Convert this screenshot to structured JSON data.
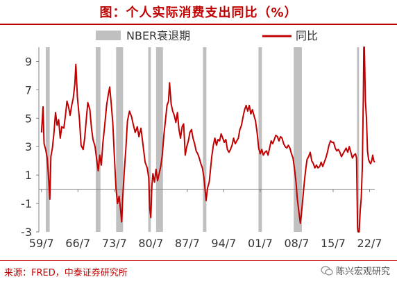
{
  "title": "图：个人实际消费支出同比（%）",
  "source": "来源：FRED，中泰证券研究所",
  "watermark": "陈兴宏观研究",
  "colors": {
    "title": "#c00000",
    "series": "#c00000",
    "recession": "#c0c0c0",
    "axis": "#808080"
  },
  "chart_data": {
    "type": "line",
    "title": "图：个人实际消费支出同比（%）",
    "xlabel": "",
    "ylabel": "",
    "ylim": [
      -3,
      10
    ],
    "xlim": [
      1959.0,
      2023.5
    ],
    "yticks": [
      9,
      7,
      5,
      3,
      1,
      -1,
      -3
    ],
    "xticks": [
      {
        "label": "59/7",
        "x": 1959.5
      },
      {
        "label": "66/7",
        "x": 1966.5
      },
      {
        "label": "73/7",
        "x": 1973.5
      },
      {
        "label": "80/7",
        "x": 1980.5
      },
      {
        "label": "87/7",
        "x": 1987.5
      },
      {
        "label": "94/7",
        "x": 1994.5
      },
      {
        "label": "01/7",
        "x": 2001.5
      },
      {
        "label": "08/7",
        "x": 2008.5
      },
      {
        "label": "15/7",
        "x": 2015.5
      },
      {
        "label": "22/7",
        "x": 2022.5
      }
    ],
    "legend": {
      "placement": "top",
      "entries": [
        {
          "name": "NBER衰退期",
          "kind": "bar"
        },
        {
          "name": "同比",
          "kind": "line"
        }
      ]
    },
    "recessions": [
      [
        1960.33,
        1961.08
      ],
      [
        1969.92,
        1970.83
      ],
      [
        1973.83,
        1975.17
      ],
      [
        1980.0,
        1980.5
      ],
      [
        1981.5,
        1982.83
      ],
      [
        1990.5,
        1991.17
      ],
      [
        2001.17,
        2001.83
      ],
      [
        2007.92,
        2009.5
      ],
      [
        2020.08,
        2020.33
      ]
    ],
    "series": [
      {
        "name": "同比",
        "points": [
          [
            1959.5,
            4.0
          ],
          [
            1959.8,
            5.8
          ],
          [
            1960.0,
            3.2
          ],
          [
            1960.3,
            2.8
          ],
          [
            1960.6,
            2.2
          ],
          [
            1960.9,
            0.6
          ],
          [
            1961.1,
            -0.7
          ],
          [
            1961.3,
            2.3
          ],
          [
            1961.6,
            2.9
          ],
          [
            1961.9,
            4.0
          ],
          [
            1962.2,
            5.4
          ],
          [
            1962.5,
            4.5
          ],
          [
            1962.8,
            4.9
          ],
          [
            1963.1,
            3.6
          ],
          [
            1963.4,
            4.4
          ],
          [
            1963.8,
            4.3
          ],
          [
            1964.1,
            5.2
          ],
          [
            1964.4,
            6.2
          ],
          [
            1964.7,
            5.8
          ],
          [
            1965.0,
            5.2
          ],
          [
            1965.3,
            5.9
          ],
          [
            1965.6,
            6.4
          ],
          [
            1965.9,
            7.4
          ],
          [
            1966.1,
            8.8
          ],
          [
            1966.4,
            6.5
          ],
          [
            1966.8,
            4.9
          ],
          [
            1967.1,
            3.1
          ],
          [
            1967.5,
            2.8
          ],
          [
            1967.8,
            3.6
          ],
          [
            1968.1,
            4.9
          ],
          [
            1968.4,
            6.1
          ],
          [
            1968.8,
            5.6
          ],
          [
            1969.1,
            4.3
          ],
          [
            1969.4,
            3.5
          ],
          [
            1969.8,
            3.0
          ],
          [
            1970.1,
            2.1
          ],
          [
            1970.4,
            1.3
          ],
          [
            1970.7,
            2.4
          ],
          [
            1971.0,
            1.7
          ],
          [
            1971.3,
            3.3
          ],
          [
            1971.6,
            4.3
          ],
          [
            1972.0,
            5.9
          ],
          [
            1972.3,
            6.6
          ],
          [
            1972.6,
            7.2
          ],
          [
            1972.9,
            6.0
          ],
          [
            1973.2,
            4.6
          ],
          [
            1973.5,
            2.3
          ],
          [
            1973.8,
            0.1
          ],
          [
            1974.1,
            -1.0
          ],
          [
            1974.4,
            -0.5
          ],
          [
            1974.7,
            -1.5
          ],
          [
            1974.9,
            -2.3
          ],
          [
            1975.1,
            -0.6
          ],
          [
            1975.4,
            1.3
          ],
          [
            1975.7,
            2.8
          ],
          [
            1976.0,
            4.8
          ],
          [
            1976.4,
            5.5
          ],
          [
            1976.8,
            5.1
          ],
          [
            1977.1,
            4.6
          ],
          [
            1977.5,
            4.0
          ],
          [
            1977.9,
            4.4
          ],
          [
            1978.2,
            3.7
          ],
          [
            1978.6,
            4.3
          ],
          [
            1979.0,
            3.1
          ],
          [
            1979.4,
            1.9
          ],
          [
            1979.8,
            1.5
          ],
          [
            1980.1,
            0.8
          ],
          [
            1980.3,
            -1.4
          ],
          [
            1980.5,
            -2.0
          ],
          [
            1980.7,
            0.2
          ],
          [
            1980.9,
            1.1
          ],
          [
            1981.2,
            0.5
          ],
          [
            1981.5,
            1.4
          ],
          [
            1981.8,
            0.6
          ],
          [
            1982.1,
            1.1
          ],
          [
            1982.4,
            1.6
          ],
          [
            1982.7,
            2.4
          ],
          [
            1983.0,
            3.8
          ],
          [
            1983.3,
            4.8
          ],
          [
            1983.6,
            5.9
          ],
          [
            1983.9,
            6.2
          ],
          [
            1984.1,
            7.5
          ],
          [
            1984.4,
            6.0
          ],
          [
            1984.7,
            5.5
          ],
          [
            1985.0,
            5.2
          ],
          [
            1985.3,
            4.7
          ],
          [
            1985.6,
            5.4
          ],
          [
            1985.9,
            4.2
          ],
          [
            1986.2,
            3.6
          ],
          [
            1986.5,
            4.4
          ],
          [
            1986.8,
            4.6
          ],
          [
            1987.1,
            2.4
          ],
          [
            1987.4,
            3.0
          ],
          [
            1987.7,
            3.4
          ],
          [
            1988.0,
            4.0
          ],
          [
            1988.3,
            4.2
          ],
          [
            1988.6,
            3.6
          ],
          [
            1988.9,
            3.2
          ],
          [
            1989.2,
            2.7
          ],
          [
            1989.5,
            2.5
          ],
          [
            1989.8,
            2.2
          ],
          [
            1990.1,
            1.8
          ],
          [
            1990.4,
            1.5
          ],
          [
            1990.7,
            0.8
          ],
          [
            1990.9,
            0.0
          ],
          [
            1991.1,
            -0.8
          ],
          [
            1991.4,
            0.1
          ],
          [
            1991.7,
            0.5
          ],
          [
            1991.9,
            1.2
          ],
          [
            1992.2,
            2.3
          ],
          [
            1992.5,
            3.1
          ],
          [
            1992.8,
            3.6
          ],
          [
            1993.1,
            3.1
          ],
          [
            1993.4,
            3.5
          ],
          [
            1993.7,
            3.4
          ],
          [
            1994.0,
            3.9
          ],
          [
            1994.3,
            3.6
          ],
          [
            1994.6,
            3.3
          ],
          [
            1994.9,
            3.5
          ],
          [
            1995.2,
            2.8
          ],
          [
            1995.5,
            2.6
          ],
          [
            1995.8,
            2.8
          ],
          [
            1996.1,
            3.1
          ],
          [
            1996.4,
            3.6
          ],
          [
            1996.7,
            3.2
          ],
          [
            1997.0,
            3.4
          ],
          [
            1997.3,
            3.6
          ],
          [
            1997.6,
            4.2
          ],
          [
            1997.9,
            4.5
          ],
          [
            1998.2,
            5.1
          ],
          [
            1998.5,
            5.6
          ],
          [
            1998.8,
            5.9
          ],
          [
            1999.1,
            5.5
          ],
          [
            1999.4,
            5.9
          ],
          [
            1999.7,
            5.3
          ],
          [
            2000.0,
            5.6
          ],
          [
            2000.3,
            5.2
          ],
          [
            2000.6,
            4.8
          ],
          [
            2000.9,
            4.0
          ],
          [
            2001.2,
            2.9
          ],
          [
            2001.5,
            2.5
          ],
          [
            2001.8,
            2.8
          ],
          [
            2002.1,
            2.4
          ],
          [
            2002.4,
            2.6
          ],
          [
            2002.7,
            2.7
          ],
          [
            2003.0,
            2.4
          ],
          [
            2003.3,
            2.9
          ],
          [
            2003.6,
            3.4
          ],
          [
            2003.9,
            3.2
          ],
          [
            2004.2,
            3.5
          ],
          [
            2004.5,
            3.8
          ],
          [
            2004.8,
            3.7
          ],
          [
            2005.1,
            3.4
          ],
          [
            2005.4,
            3.7
          ],
          [
            2005.7,
            3.6
          ],
          [
            2006.0,
            3.2
          ],
          [
            2006.3,
            3.0
          ],
          [
            2006.6,
            2.9
          ],
          [
            2006.9,
            3.1
          ],
          [
            2007.2,
            2.9
          ],
          [
            2007.5,
            2.5
          ],
          [
            2007.8,
            2.2
          ],
          [
            2008.1,
            1.4
          ],
          [
            2008.4,
            0.4
          ],
          [
            2008.6,
            -0.6
          ],
          [
            2008.9,
            -1.5
          ],
          [
            2009.2,
            -2.4
          ],
          [
            2009.4,
            -1.8
          ],
          [
            2009.7,
            -0.6
          ],
          [
            2009.9,
            0.2
          ],
          [
            2010.2,
            1.3
          ],
          [
            2010.5,
            2.1
          ],
          [
            2010.8,
            2.3
          ],
          [
            2011.1,
            2.6
          ],
          [
            2011.4,
            2.0
          ],
          [
            2011.7,
            1.8
          ],
          [
            2012.0,
            1.5
          ],
          [
            2012.3,
            1.7
          ],
          [
            2012.6,
            1.5
          ],
          [
            2012.9,
            1.6
          ],
          [
            2013.2,
            1.9
          ],
          [
            2013.5,
            1.6
          ],
          [
            2013.8,
            1.9
          ],
          [
            2014.1,
            2.2
          ],
          [
            2014.4,
            2.6
          ],
          [
            2014.7,
            3.1
          ],
          [
            2015.0,
            3.4
          ],
          [
            2015.3,
            3.3
          ],
          [
            2015.6,
            3.3
          ],
          [
            2015.9,
            2.9
          ],
          [
            2016.2,
            2.7
          ],
          [
            2016.5,
            2.8
          ],
          [
            2016.8,
            2.6
          ],
          [
            2017.1,
            2.3
          ],
          [
            2017.4,
            2.5
          ],
          [
            2017.7,
            2.7
          ],
          [
            2018.0,
            2.9
          ],
          [
            2018.3,
            2.6
          ],
          [
            2018.6,
            3.0
          ],
          [
            2018.9,
            2.6
          ],
          [
            2019.2,
            2.2
          ],
          [
            2019.5,
            2.4
          ],
          [
            2019.8,
            2.5
          ],
          [
            2020.0,
            2.2
          ],
          [
            2020.2,
            -2.7
          ],
          [
            2020.3,
            -16.0
          ],
          [
            2020.5,
            -3.0
          ],
          [
            2020.7,
            -1.5
          ],
          [
            2020.9,
            -0.6
          ],
          [
            2021.1,
            1.5
          ],
          [
            2021.3,
            6.5
          ],
          [
            2021.4,
            15.8
          ],
          [
            2021.5,
            11.0
          ],
          [
            2021.7,
            6.2
          ],
          [
            2021.9,
            5.0
          ],
          [
            2022.1,
            2.7
          ],
          [
            2022.3,
            2.1
          ],
          [
            2022.5,
            1.9
          ],
          [
            2022.7,
            1.8
          ],
          [
            2022.9,
            2.0
          ],
          [
            2023.1,
            2.4
          ],
          [
            2023.3,
            2.0
          ],
          [
            2023.5,
            1.9
          ]
        ]
      }
    ]
  }
}
